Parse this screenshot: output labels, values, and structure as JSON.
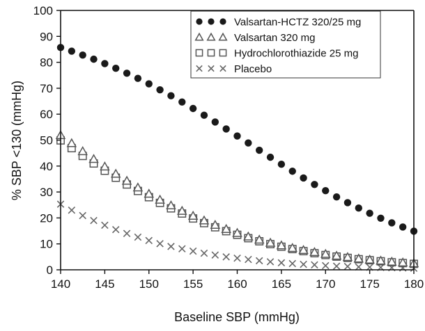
{
  "chart_data": {
    "type": "scatter",
    "title": "",
    "xlabel": "Baseline SBP (mmHg)",
    "ylabel": "% SBP <130 (mmHg)",
    "xlim": [
      140,
      180
    ],
    "ylim": [
      0,
      100
    ],
    "x_ticks": [
      "140",
      "145",
      "150",
      "155",
      "160",
      "165",
      "170",
      "175",
      "180"
    ],
    "y_ticks": [
      "0",
      "10",
      "20",
      "30",
      "40",
      "50",
      "60",
      "70",
      "80",
      "90",
      "100"
    ],
    "legend_position": "top-right",
    "x": [
      140,
      141.25,
      142.5,
      143.75,
      145,
      146.25,
      147.5,
      148.75,
      150,
      151.25,
      152.5,
      153.75,
      155,
      156.25,
      157.5,
      158.75,
      160,
      161.25,
      162.5,
      163.75,
      165,
      166.25,
      167.5,
      168.75,
      170,
      171.25,
      172.5,
      173.75,
      175,
      176.25,
      177.5,
      178.75,
      180
    ],
    "series": [
      {
        "name": "Valsartan-HCTZ 320/25 mg",
        "marker": "filled-circle",
        "values": [
          85.7,
          84.3,
          82.8,
          81.2,
          79.5,
          77.7,
          75.8,
          73.8,
          71.7,
          69.4,
          67.1,
          64.7,
          62.2,
          59.6,
          57.0,
          54.3,
          51.6,
          48.9,
          46.1,
          43.4,
          40.7,
          38.0,
          35.4,
          32.9,
          30.5,
          28.1,
          25.9,
          23.8,
          21.8,
          19.9,
          18.1,
          16.5,
          14.9
        ]
      },
      {
        "name": "Valsartan 320 mg",
        "marker": "open-triangle",
        "values": [
          51.9,
          48.8,
          45.7,
          42.7,
          39.8,
          37.0,
          34.3,
          31.7,
          29.3,
          27.0,
          24.8,
          22.7,
          20.8,
          19.0,
          17.3,
          15.7,
          14.2,
          12.8,
          11.6,
          10.4,
          9.4,
          8.4,
          7.6,
          6.8,
          6.1,
          5.4,
          4.9,
          4.3,
          3.9,
          3.5,
          3.1,
          2.8,
          2.5
        ]
      },
      {
        "name": "Hydrochlorothiazide 25 mg",
        "marker": "open-square",
        "values": [
          49.9,
          46.9,
          43.9,
          41.0,
          38.2,
          35.5,
          32.9,
          30.4,
          28.0,
          25.8,
          23.7,
          21.7,
          19.8,
          18.0,
          16.4,
          14.9,
          13.5,
          12.2,
          11.0,
          9.9,
          8.9,
          8.0,
          7.2,
          6.4,
          5.7,
          5.1,
          4.6,
          4.1,
          3.7,
          3.3,
          2.9,
          2.6,
          2.3
        ]
      },
      {
        "name": "Placebo",
        "marker": "x-cross",
        "values": [
          25.3,
          23.0,
          20.9,
          19.0,
          17.2,
          15.5,
          14.0,
          12.6,
          11.3,
          10.1,
          9.0,
          8.1,
          7.2,
          6.4,
          5.7,
          5.0,
          4.5,
          4.0,
          3.5,
          3.1,
          2.7,
          2.4,
          2.1,
          1.9,
          1.6,
          1.4,
          1.3,
          1.1,
          1.0,
          0.9,
          0.8,
          0.7,
          0.6
        ]
      }
    ]
  },
  "colors": {
    "axis": "#111111",
    "marker_fill": "#1a1a1a",
    "marker_open": "#555555",
    "placebo": "#666666"
  }
}
